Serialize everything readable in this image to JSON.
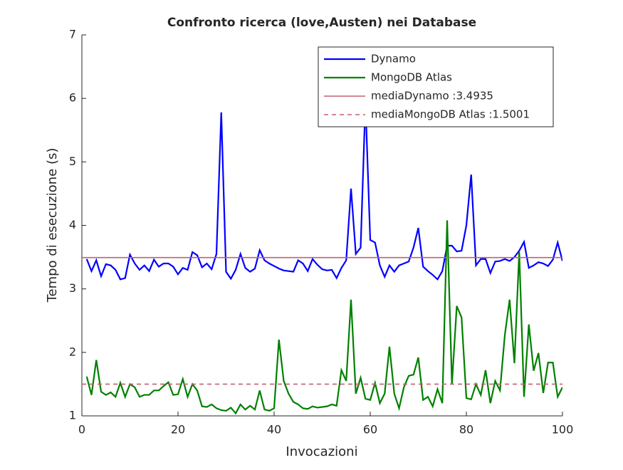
{
  "chart_data": {
    "type": "line",
    "title": "Confronto ricerca (love,Austen) nei Database",
    "x_label": "Invocazioni",
    "y_label": "Tempo di esecuzione (s)",
    "x": [
      1,
      2,
      3,
      4,
      5,
      6,
      7,
      8,
      9,
      10,
      11,
      12,
      13,
      14,
      15,
      16,
      17,
      18,
      19,
      20,
      21,
      22,
      23,
      24,
      25,
      26,
      27,
      28,
      29,
      30,
      31,
      32,
      33,
      34,
      35,
      36,
      37,
      38,
      39,
      40,
      41,
      42,
      43,
      44,
      45,
      46,
      47,
      48,
      49,
      50,
      51,
      52,
      53,
      54,
      55,
      56,
      57,
      58,
      59,
      60,
      61,
      62,
      63,
      64,
      65,
      66,
      67,
      68,
      69,
      70,
      71,
      72,
      73,
      74,
      75,
      76,
      77,
      78,
      79,
      80,
      81,
      82,
      83,
      84,
      85,
      86,
      87,
      88,
      89,
      90,
      91,
      92,
      93,
      94,
      95,
      96,
      97,
      98,
      99,
      100
    ],
    "series": [
      {
        "name": "Dynamo",
        "color": "#0000ff",
        "values": [
          3.47,
          3.28,
          3.45,
          3.2,
          3.39,
          3.37,
          3.3,
          3.15,
          3.17,
          3.54,
          3.4,
          3.3,
          3.37,
          3.28,
          3.46,
          3.35,
          3.4,
          3.4,
          3.35,
          3.23,
          3.33,
          3.3,
          3.58,
          3.53,
          3.34,
          3.4,
          3.31,
          3.55,
          5.78,
          3.27,
          3.16,
          3.3,
          3.55,
          3.33,
          3.27,
          3.32,
          3.61,
          3.45,
          3.4,
          3.36,
          3.32,
          3.29,
          3.28,
          3.27,
          3.45,
          3.4,
          3.28,
          3.47,
          3.38,
          3.31,
          3.29,
          3.3,
          3.17,
          3.33,
          3.45,
          4.58,
          3.55,
          3.65,
          5.95,
          3.77,
          3.73,
          3.37,
          3.19,
          3.37,
          3.27,
          3.37,
          3.4,
          3.43,
          3.65,
          3.96,
          3.35,
          3.28,
          3.22,
          3.15,
          3.28,
          3.68,
          3.68,
          3.59,
          3.6,
          4.0,
          4.8,
          3.37,
          3.47,
          3.47,
          3.25,
          3.43,
          3.44,
          3.47,
          3.44,
          3.5,
          3.6,
          3.74,
          3.33,
          3.37,
          3.42,
          3.4,
          3.36,
          3.46,
          3.73,
          3.44
        ]
      },
      {
        "name": "MongoDB Atlas",
        "color": "#008000",
        "values": [
          1.62,
          1.33,
          1.88,
          1.38,
          1.33,
          1.37,
          1.3,
          1.52,
          1.3,
          1.5,
          1.45,
          1.3,
          1.33,
          1.33,
          1.4,
          1.4,
          1.47,
          1.53,
          1.33,
          1.34,
          1.58,
          1.3,
          1.5,
          1.4,
          1.15,
          1.14,
          1.18,
          1.12,
          1.09,
          1.08,
          1.13,
          1.04,
          1.18,
          1.1,
          1.16,
          1.1,
          1.4,
          1.1,
          1.08,
          1.12,
          2.2,
          1.55,
          1.35,
          1.22,
          1.18,
          1.12,
          1.11,
          1.15,
          1.13,
          1.14,
          1.15,
          1.18,
          1.16,
          1.72,
          1.55,
          2.83,
          1.35,
          1.6,
          1.27,
          1.25,
          1.52,
          1.2,
          1.35,
          2.09,
          1.35,
          1.12,
          1.45,
          1.63,
          1.65,
          1.92,
          1.25,
          1.3,
          1.15,
          1.42,
          1.2,
          4.08,
          1.5,
          2.73,
          2.55,
          1.28,
          1.26,
          1.5,
          1.33,
          1.72,
          1.2,
          1.55,
          1.4,
          2.27,
          2.83,
          1.83,
          3.58,
          1.3,
          2.44,
          1.71,
          1.99,
          1.36,
          1.84,
          1.84,
          1.3,
          1.45
        ]
      }
    ],
    "mean_lines": [
      {
        "name": "mediaDynamo :3.4935",
        "value": 3.4935,
        "color": "#c06070",
        "dashed": false
      },
      {
        "name": "mediaMongoDB Atlas :1.5001",
        "value": 1.5001,
        "color": "#c06070",
        "dashed": true
      }
    ],
    "xlim": [
      0,
      100
    ],
    "xticks": [
      0,
      20,
      40,
      60,
      80,
      100
    ],
    "ylim": [
      1,
      7
    ],
    "yticks": [
      1,
      2,
      3,
      4,
      5,
      6,
      7
    ],
    "legend": "top-right"
  }
}
